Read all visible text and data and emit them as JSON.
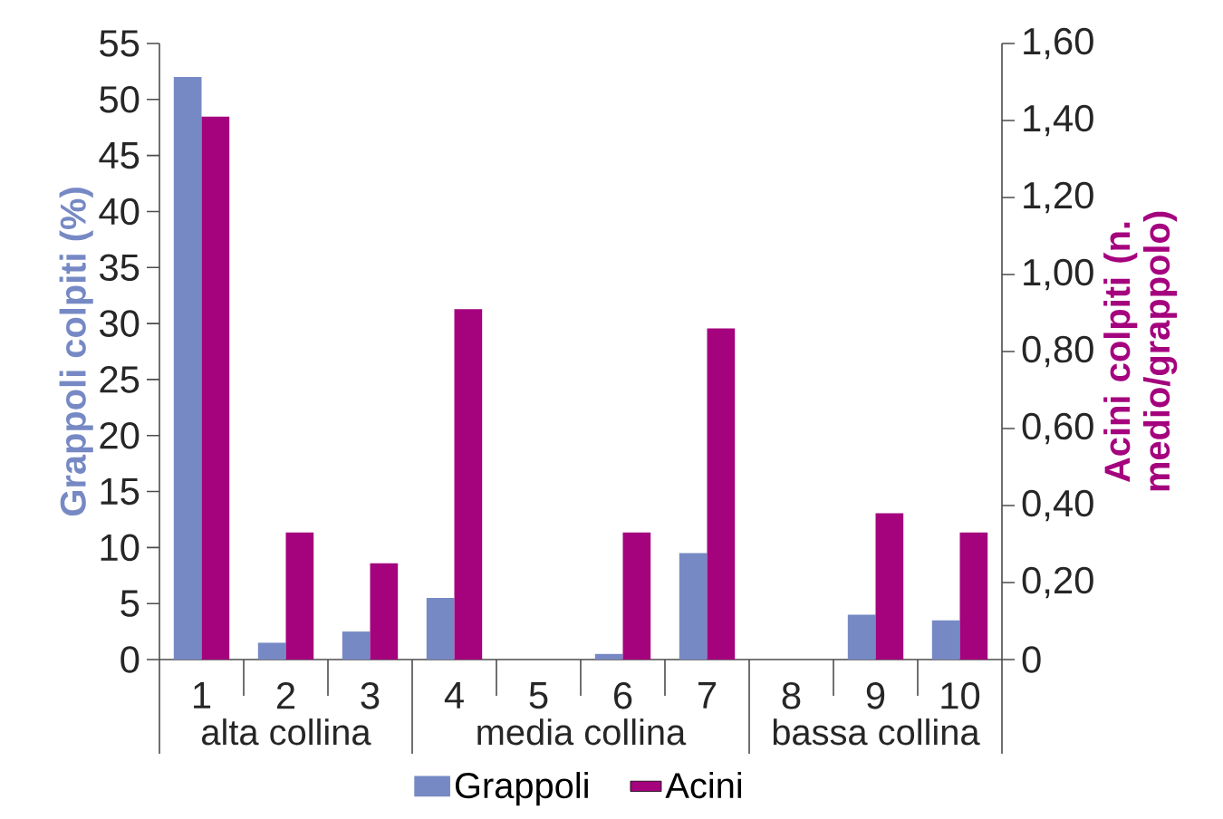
{
  "chart_data": {
    "type": "bar",
    "categories": [
      "1",
      "2",
      "3",
      "4",
      "5",
      "6",
      "7",
      "8",
      "9",
      "10"
    ],
    "series": [
      {
        "name": "Grappoli",
        "color": "#7689c4",
        "values": [
          52,
          1.5,
          2.5,
          5.5,
          0,
          0.5,
          9.5,
          0,
          4,
          3.5
        ]
      },
      {
        "name": "Acini",
        "color": "#a5027e",
        "axis": "y2",
        "values": [
          1.41,
          0.33,
          0.25,
          0.91,
          0,
          0.33,
          0.86,
          0,
          0.38,
          0.33
        ]
      }
    ],
    "ylabel": "Grappoli colpiti (%)",
    "y2label": "Acini colpiti (n. medio/grappolo)",
    "ylim": [
      0,
      55
    ],
    "yticks": [
      0,
      5,
      10,
      15,
      20,
      25,
      30,
      35,
      40,
      45,
      50,
      55
    ],
    "y2lim": [
      0,
      1.6
    ],
    "y2ticks": [
      0,
      {
        "value": 0.2,
        "label": "0,20"
      },
      {
        "value": 0.4,
        "label": "0,40"
      },
      {
        "value": 0.6,
        "label": "0,60"
      },
      {
        "value": 0.8,
        "label": "0,80"
      },
      {
        "value": 1.0,
        "label": "1,00"
      },
      {
        "value": 1.2,
        "label": "1,20"
      },
      {
        "value": 1.4,
        "label": "1,40"
      },
      {
        "value": 1.6,
        "label": "1,60"
      }
    ],
    "annotations": [
      "alta collina",
      "media collina",
      "bassa collina"
    ],
    "legend": "bottom"
  }
}
